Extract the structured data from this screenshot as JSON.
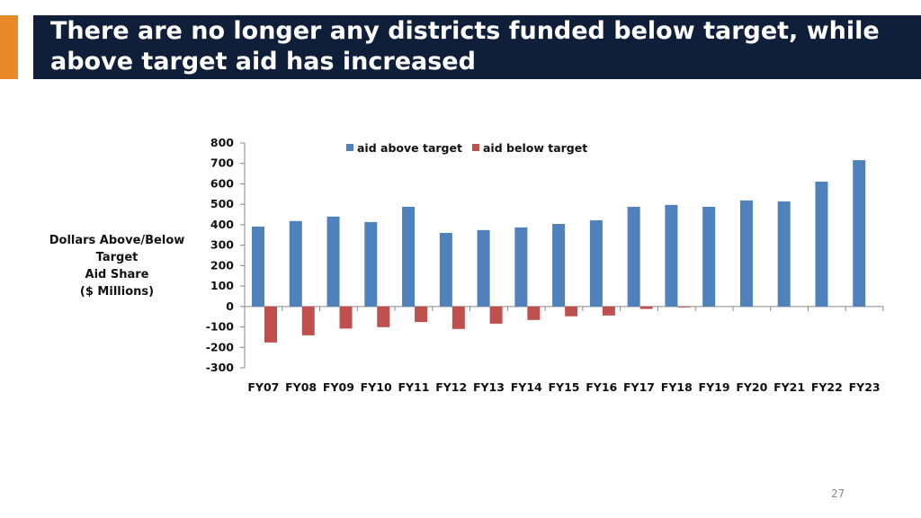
{
  "title": "There are no longer any districts funded below target, while above target aid has increased",
  "page_number": "27",
  "colors": {
    "accent": "#e88a2a",
    "title_bg": "#0f1f3a",
    "above": "#4f81bd",
    "below": "#c0504d"
  },
  "chart_data": {
    "type": "bar",
    "title": "",
    "xlabel": "",
    "ylabel_lines": [
      "Dollars Above/Below Target",
      "Aid Share",
      "($ Millions)"
    ],
    "ylim": [
      -300,
      800
    ],
    "yticks": [
      800,
      700,
      600,
      500,
      400,
      300,
      200,
      100,
      0,
      -100,
      -200,
      -300
    ],
    "legend_position": "top",
    "categories": [
      "FY07",
      "FY08",
      "FY09",
      "FY10",
      "FY11",
      "FY12",
      "FY13",
      "FY14",
      "FY15",
      "FY16",
      "FY17",
      "FY18",
      "FY19",
      "FY20",
      "FY21",
      "FY22",
      "FY23"
    ],
    "series": [
      {
        "name": "aid above target",
        "values": [
          391,
          418,
          440,
          413,
          488,
          360,
          374,
          387,
          404,
          422,
          488,
          497,
          488,
          519,
          514,
          611,
          716
        ]
      },
      {
        "name": "aid below target",
        "values": [
          -176,
          -141,
          -108,
          -101,
          -76,
          -110,
          -84,
          -66,
          -48,
          -44,
          -12,
          -4,
          0,
          0,
          0,
          0,
          0
        ]
      }
    ]
  }
}
